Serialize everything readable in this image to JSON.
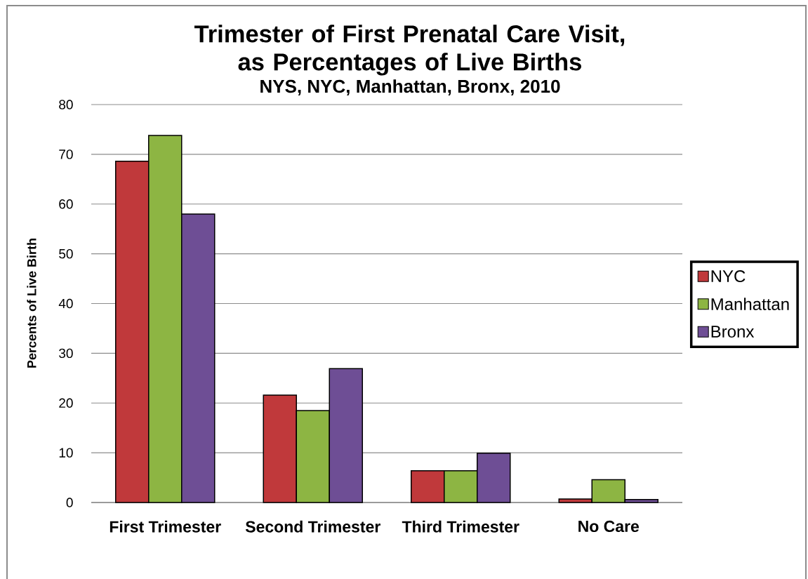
{
  "chart_data": {
    "type": "bar",
    "title": "Trimester of First Prenatal Care Visit, as Percentages of Live Births",
    "subtitle": "NYS, NYC, Manhattan, Bronx, 2010",
    "ylabel": "Percents of Live Birth",
    "categories": [
      "First Trimester",
      "Second Trimester",
      "Third Trimester",
      "No Care"
    ],
    "series": [
      {
        "name": "NYC",
        "color": "#c0393b",
        "values": [
          68.6,
          21.6,
          6.4,
          0.7
        ]
      },
      {
        "name": "Manhattan",
        "color": "#8db543",
        "values": [
          73.8,
          18.5,
          6.4,
          4.6
        ]
      },
      {
        "name": "Bronx",
        "color": "#6e4e95",
        "values": [
          58.0,
          26.9,
          9.9,
          0.6
        ]
      }
    ],
    "ylim": [
      0,
      80
    ],
    "yticks": [
      0,
      10,
      20,
      30,
      40,
      50,
      60,
      70,
      80
    ],
    "grid": "y",
    "legend": "right"
  }
}
